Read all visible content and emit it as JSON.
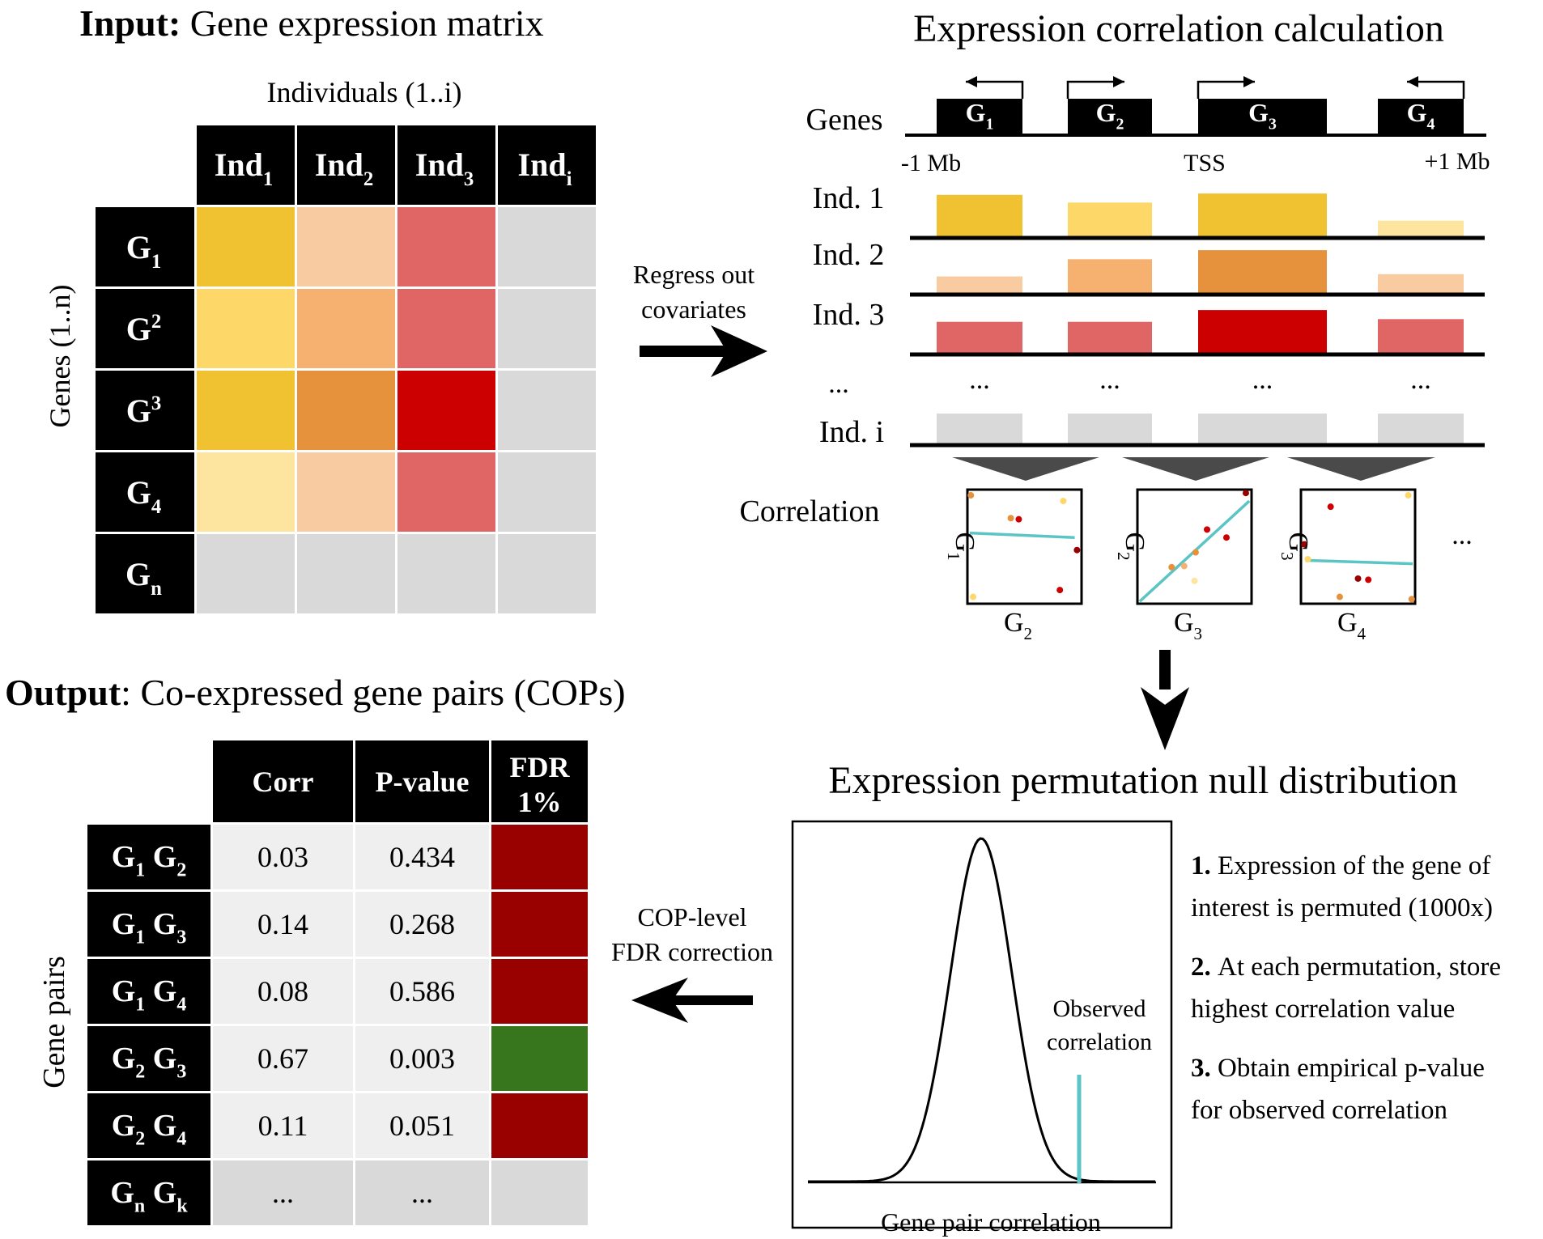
{
  "input": {
    "title_bold": "Input:",
    "title_rest": " Gene expression matrix",
    "columns_label": "Individuals (1..i)",
    "rows_label": "Genes (1..n)",
    "col_headers": [
      {
        "base": "Ind",
        "sub": "1"
      },
      {
        "base": "Ind",
        "sub": "2"
      },
      {
        "base": "Ind",
        "sub": "3"
      },
      {
        "base": "Ind",
        "sub": "i"
      }
    ],
    "row_headers": [
      {
        "base": "G",
        "sub": "1",
        "sup": ""
      },
      {
        "base": "G",
        "sub": "",
        "sup": "2"
      },
      {
        "base": "G",
        "sub": "",
        "sup": "3"
      },
      {
        "base": "G",
        "sub": "4",
        "sup": ""
      },
      {
        "base": "G",
        "sub": "n",
        "sup": ""
      }
    ],
    "cell_colors": [
      [
        "#f0c232",
        "#f8cba0",
        "#e06565",
        "#d9d9d9"
      ],
      [
        "#fdd869",
        "#f6b06f",
        "#e06565",
        "#d9d9d9"
      ],
      [
        "#f0c232",
        "#e6923c",
        "#cc0000",
        "#d9d9d9"
      ],
      [
        "#fde59f",
        "#f8cba0",
        "#e06565",
        "#d9d9d9"
      ],
      [
        "#d9d9d9",
        "#d9d9d9",
        "#d9d9d9",
        "#d9d9d9"
      ]
    ]
  },
  "arrow1_label": [
    "Regress out",
    "covariates"
  ],
  "correlation_calc": {
    "title": "Expression correlation calculation",
    "genes_label": "Genes",
    "genes": [
      {
        "base": "G",
        "sub": "1",
        "direction": "left"
      },
      {
        "base": "G",
        "sub": "2",
        "direction": "right"
      },
      {
        "base": "G",
        "sub": "3",
        "direction": "right"
      },
      {
        "base": "G",
        "sub": "4",
        "direction": "left"
      }
    ],
    "axis_left": "-1 Mb",
    "axis_mid": "TSS",
    "axis_right": "+1 Mb",
    "individuals": [
      {
        "label": "Ind. 1",
        "levels": [
          0.95,
          0.78,
          0.98,
          0.38
        ],
        "colors": [
          "#f0c232",
          "#fdd869",
          "#f0c232",
          "#fde59f"
        ]
      },
      {
        "label": "Ind. 2",
        "levels": [
          0.4,
          0.78,
          0.98,
          0.45
        ],
        "colors": [
          "#f8cba0",
          "#f6b06f",
          "#e6923c",
          "#f8cba0"
        ]
      },
      {
        "label": "Ind. 3",
        "levels": [
          0.72,
          0.72,
          0.98,
          0.78
        ],
        "colors": [
          "#e06565",
          "#e06565",
          "#cc0000",
          "#e06565"
        ]
      }
    ],
    "ellipsis_label": "...",
    "ellipsis": "...",
    "last_individual": {
      "label": "Ind. i",
      "levels": [
        0.75,
        0.75,
        0.75,
        0.75
      ],
      "colors": [
        "#d9d9d9",
        "#d9d9d9",
        "#d9d9d9",
        "#d9d9d9"
      ]
    },
    "correlation_label": "Correlation",
    "plots": [
      {
        "y": {
          "base": "G",
          "sub": "1"
        },
        "x": {
          "base": "G",
          "sub": "2"
        }
      },
      {
        "y": {
          "base": "G",
          "sub": "2"
        },
        "x": {
          "base": "G",
          "sub": "3"
        }
      },
      {
        "y": {
          "base": "G",
          "sub": "3"
        },
        "x": {
          "base": "G",
          "sub": "4"
        }
      }
    ],
    "plots_more": "..."
  },
  "null_dist": {
    "title": "Expression permutation null distribution",
    "observed_label": [
      "Observed",
      "correlation"
    ],
    "x_label": "Gene pair correlation",
    "steps": [
      {
        "num": "1.",
        "text": [
          "Expression of the gene of",
          "interest is permuted (1000x)"
        ]
      },
      {
        "num": "2.",
        "text": [
          "At each permutation, store",
          "highest correlation value"
        ]
      },
      {
        "num": "3.",
        "text": [
          "Obtain empirical p-value",
          "for observed correlation"
        ]
      }
    ],
    "line_color": "#5bc4c4"
  },
  "arrow3_label": [
    "COP-level",
    "FDR correction"
  ],
  "output": {
    "title_bold": "Output",
    "title_rest": ": Co-expressed gene pairs (COPs)",
    "rows_label": "Gene pairs",
    "col_headers": [
      "Corr",
      "P-value",
      "FDR 1%"
    ],
    "rows": [
      {
        "g1": {
          "base": "G",
          "sub": "1"
        },
        "g2": {
          "base": "G",
          "sub": "2"
        },
        "corr": "0.03",
        "p": "0.434",
        "fdr_color": "#990000"
      },
      {
        "g1": {
          "base": "G",
          "sub": "1"
        },
        "g2": {
          "base": "G",
          "sub": "3"
        },
        "corr": "0.14",
        "p": "0.268",
        "fdr_color": "#990000"
      },
      {
        "g1": {
          "base": "G",
          "sub": "1"
        },
        "g2": {
          "base": "G",
          "sub": "4"
        },
        "corr": "0.08",
        "p": "0.586",
        "fdr_color": "#990000"
      },
      {
        "g1": {
          "base": "G",
          "sub": "2"
        },
        "g2": {
          "base": "G",
          "sub": "3"
        },
        "corr": "0.67",
        "p": "0.003",
        "fdr_color": "#38761d"
      },
      {
        "g1": {
          "base": "G",
          "sub": "2"
        },
        "g2": {
          "base": "G",
          "sub": "4"
        },
        "corr": "0.11",
        "p": "0.051",
        "fdr_color": "#990000"
      },
      {
        "g1": {
          "base": "G",
          "sub": "n"
        },
        "g2": {
          "base": "G",
          "sub": "k"
        },
        "corr": "...",
        "p": "...",
        "fdr_color": "#d9d9d9"
      }
    ]
  }
}
